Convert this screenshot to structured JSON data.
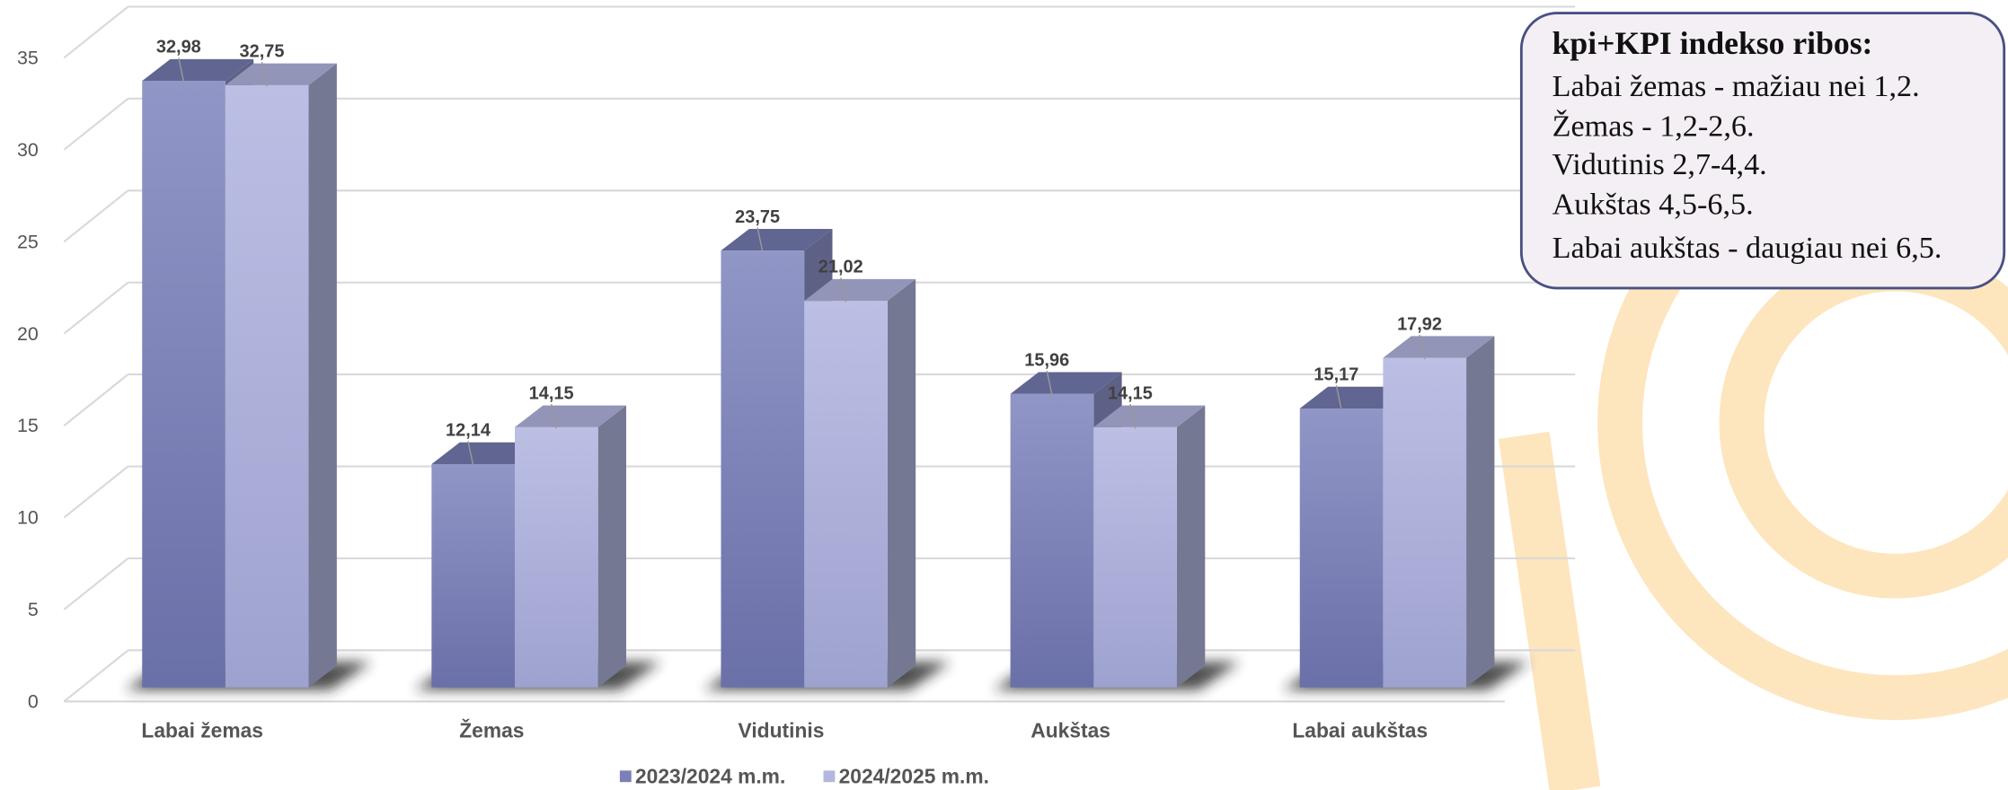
{
  "chart_data": {
    "type": "bar3d",
    "categories": [
      "Labai žemas",
      "Žemas",
      "Vidutinis",
      "Aukštas",
      "Labai aukštas"
    ],
    "series": [
      {
        "name": "2023/2024 m.m.",
        "color": "#7b81b7",
        "values": [
          32.98,
          12.14,
          23.75,
          15.96,
          15.17
        ],
        "value_labels": [
          "32,98",
          "12,14",
          "23,75",
          "15,96",
          "15,17"
        ]
      },
      {
        "name": "2024/2025 m.m.",
        "color": "#b3b6de",
        "values": [
          32.75,
          14.15,
          21.02,
          14.15,
          17.92
        ],
        "value_labels": [
          "32,75",
          "14,15",
          "21,02",
          "14,15",
          "17,92"
        ]
      }
    ],
    "ylim": [
      0,
      35
    ],
    "yticks": [
      0,
      5,
      10,
      15,
      20,
      25,
      30,
      35
    ],
    "grid": true,
    "legend": "bottom",
    "annotation_box": {
      "title": "kpi+KPI indekso ribos:",
      "lines": [
        "Labai žemas - mažiau nei 1,2.",
        "Žemas - 1,2-2,6.",
        "Vidutinis 2,7-4,4.",
        "Aukštas 4,5-6,5.",
        "Labai aukštas - daugiau nei 6,5."
      ]
    }
  }
}
